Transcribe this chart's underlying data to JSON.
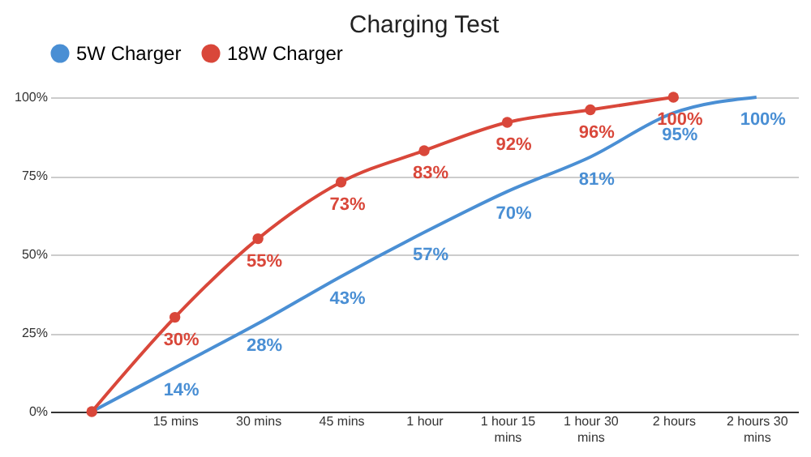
{
  "chart_data": {
    "type": "line",
    "title": "Charging Test",
    "categories": [
      null,
      "15 mins",
      "30 mins",
      "45 mins",
      "1 hour",
      "1 hour 15 mins",
      "1 hour 30 mins",
      "2 hours",
      "2 hours 30 mins"
    ],
    "series": [
      {
        "name": "5W Charger",
        "color": "#4a8fd4",
        "marker": "none",
        "values": [
          0,
          14,
          28,
          43,
          57,
          70,
          81,
          95,
          100
        ],
        "value_labels": [
          null,
          "14%",
          "28%",
          "43%",
          "57%",
          "70%",
          "81%",
          "95%",
          "100%"
        ]
      },
      {
        "name": "18W Charger",
        "color": "#d9473a",
        "marker": "circle",
        "values": [
          0,
          30,
          55,
          73,
          83,
          92,
          96,
          100,
          null
        ],
        "value_labels": [
          null,
          "30%",
          "55%",
          "73%",
          "83%",
          "92%",
          "96%",
          "100%",
          null
        ]
      }
    ],
    "ylim": [
      0,
      100
    ],
    "yticks": [
      {
        "value": 0,
        "label": "0%"
      },
      {
        "value": 25,
        "label": "25%"
      },
      {
        "value": 50,
        "label": "50%"
      },
      {
        "value": 75,
        "label": "75%"
      },
      {
        "value": 100,
        "label": "100%"
      }
    ],
    "grid": "y",
    "legend": "top",
    "line_style": "solid"
  }
}
